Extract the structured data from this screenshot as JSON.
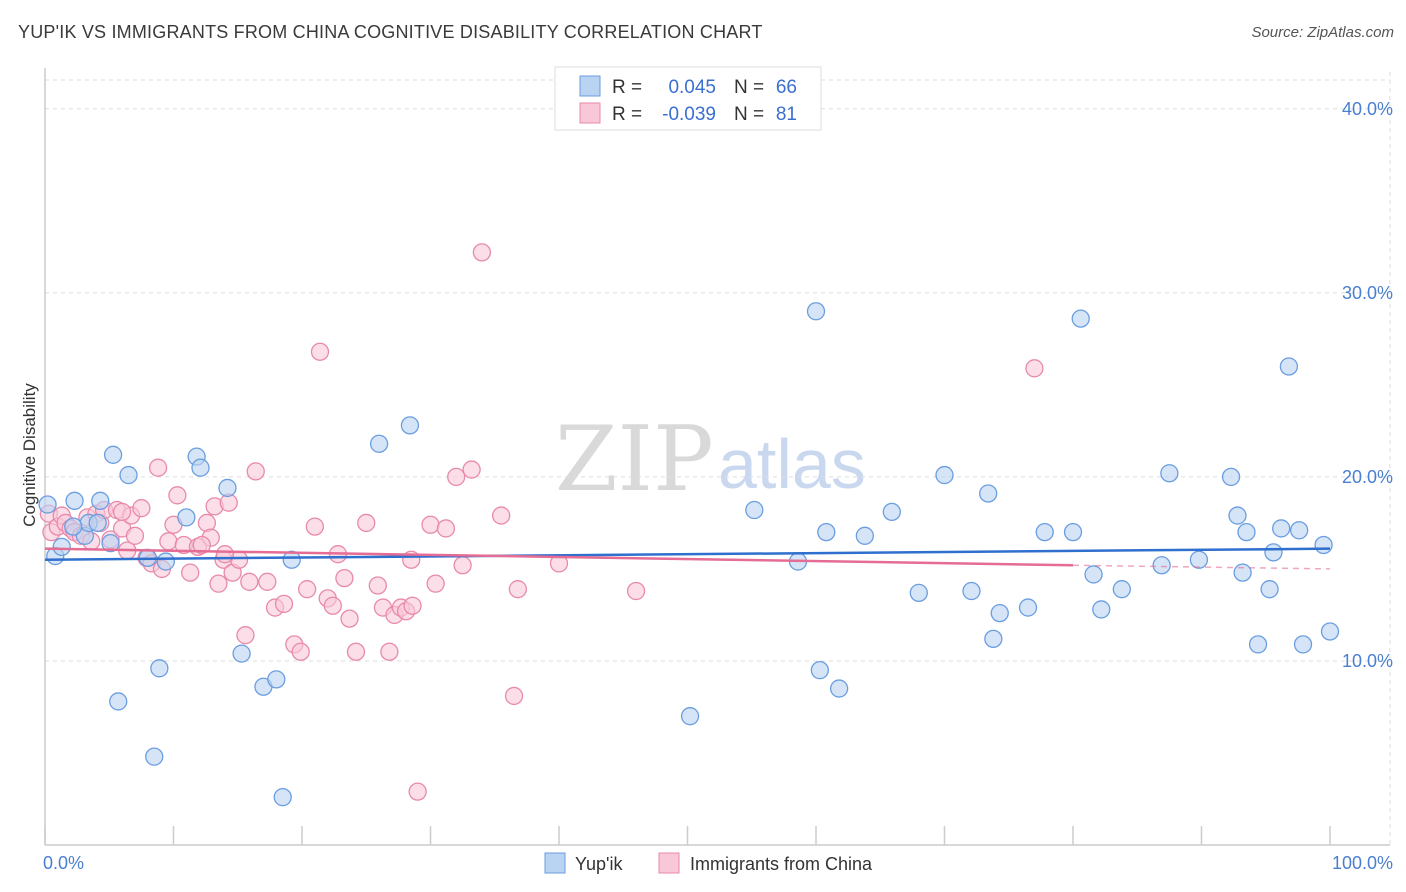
{
  "title": "YUP'IK VS IMMIGRANTS FROM CHINA COGNITIVE DISABILITY CORRELATION CHART",
  "source": "Source: ZipAtlas.com",
  "watermark": {
    "zip": "ZIP",
    "atlas": "atlas"
  },
  "legend": {
    "r_label": "R =",
    "n_label": "N =",
    "rows": [
      {
        "r": "0.045",
        "n": "66"
      },
      {
        "r": "-0.039",
        "n": "81"
      }
    ]
  },
  "colors": {
    "blue_fill": "#b9d3f2",
    "blue_stroke": "#6b9ee0",
    "blue_line": "#2f6fce",
    "pink_fill": "#f8c8d8",
    "pink_stroke": "#e88aab",
    "pink_line": "#e46c95"
  },
  "chart_data": {
    "type": "scatter",
    "title": "YUP'IK VS IMMIGRANTS FROM CHINA COGNITIVE DISABILITY CORRELATION CHART",
    "xlabel": "",
    "ylabel": "Cognitive Disability",
    "xlim": [
      0,
      100
    ],
    "ylim": [
      0,
      42
    ],
    "x_tick_labels": [
      "0.0%",
      "100.0%"
    ],
    "y_ticks": [
      10,
      20,
      30,
      40
    ],
    "y_tick_labels": [
      "10.0%",
      "20.0%",
      "30.0%",
      "40.0%"
    ],
    "grid": true,
    "legend_position": "bottom",
    "series": [
      {
        "name": "Yup'ik",
        "r": 0.045,
        "n": 66,
        "trend": {
          "x": [
            0,
            100
          ],
          "y": [
            15.5,
            16.1
          ]
        },
        "points": [
          [
            0.2,
            18.5
          ],
          [
            0.8,
            15.7
          ],
          [
            1.3,
            16.2
          ],
          [
            2.3,
            18.7
          ],
          [
            3.1,
            16.8
          ],
          [
            3.4,
            17.5
          ],
          [
            4.1,
            17.5
          ],
          [
            4.3,
            18.7
          ],
          [
            5.1,
            16.4
          ],
          [
            5.3,
            21.2
          ],
          [
            5.7,
            7.8
          ],
          [
            6.5,
            20.1
          ],
          [
            8.0,
            15.6
          ],
          [
            8.5,
            4.8
          ],
          [
            8.9,
            9.6
          ],
          [
            9.4,
            15.4
          ],
          [
            11.0,
            17.8
          ],
          [
            11.8,
            21.1
          ],
          [
            12.1,
            20.5
          ],
          [
            14.2,
            19.4
          ],
          [
            15.3,
            10.4
          ],
          [
            17.0,
            8.6
          ],
          [
            18.0,
            9.0
          ],
          [
            18.5,
            2.6
          ],
          [
            19.2,
            15.5
          ],
          [
            26.0,
            21.8
          ],
          [
            28.4,
            22.8
          ],
          [
            50.2,
            7.0
          ],
          [
            55.2,
            18.2
          ],
          [
            58.6,
            15.4
          ],
          [
            60.0,
            29.0
          ],
          [
            60.3,
            9.5
          ],
          [
            60.8,
            17.0
          ],
          [
            61.8,
            8.5
          ],
          [
            63.8,
            16.8
          ],
          [
            65.9,
            18.1
          ],
          [
            68.0,
            13.7
          ],
          [
            70.0,
            20.1
          ],
          [
            72.1,
            13.8
          ],
          [
            73.4,
            19.1
          ],
          [
            73.8,
            11.2
          ],
          [
            74.3,
            12.6
          ],
          [
            76.5,
            12.9
          ],
          [
            77.8,
            17.0
          ],
          [
            80.0,
            17.0
          ],
          [
            80.6,
            28.6
          ],
          [
            81.6,
            14.7
          ],
          [
            82.2,
            12.8
          ],
          [
            83.8,
            13.9
          ],
          [
            86.9,
            15.2
          ],
          [
            87.5,
            20.2
          ],
          [
            89.8,
            15.5
          ],
          [
            92.3,
            20.0
          ],
          [
            92.8,
            17.9
          ],
          [
            93.2,
            14.8
          ],
          [
            93.5,
            17.0
          ],
          [
            94.4,
            10.9
          ],
          [
            95.3,
            13.9
          ],
          [
            95.6,
            15.9
          ],
          [
            96.2,
            17.2
          ],
          [
            96.8,
            26.0
          ],
          [
            97.6,
            17.1
          ],
          [
            97.9,
            10.9
          ],
          [
            99.5,
            16.3
          ],
          [
            100.0,
            11.6
          ],
          [
            2.2,
            17.3
          ]
        ]
      },
      {
        "name": "Immigrants from China",
        "r": -0.039,
        "n": 81,
        "trend": {
          "x": [
            0,
            80
          ],
          "y": [
            16.1,
            15.2
          ]
        },
        "trend_dashed": {
          "x": [
            80,
            100
          ],
          "y": [
            15.2,
            15.0
          ]
        },
        "points": [
          [
            0.3,
            18.0
          ],
          [
            0.5,
            17.0
          ],
          [
            1.0,
            17.3
          ],
          [
            1.3,
            17.9
          ],
          [
            1.6,
            17.5
          ],
          [
            2.0,
            17.2
          ],
          [
            2.3,
            17.0
          ],
          [
            2.8,
            16.8
          ],
          [
            3.3,
            17.8
          ],
          [
            3.6,
            16.5
          ],
          [
            4.0,
            18.0
          ],
          [
            4.3,
            17.5
          ],
          [
            4.6,
            18.2
          ],
          [
            5.1,
            16.6
          ],
          [
            5.6,
            18.2
          ],
          [
            6.0,
            17.2
          ],
          [
            6.4,
            16.0
          ],
          [
            6.7,
            17.9
          ],
          [
            7.0,
            16.8
          ],
          [
            7.5,
            18.3
          ],
          [
            7.9,
            15.6
          ],
          [
            8.3,
            15.3
          ],
          [
            8.8,
            20.5
          ],
          [
            9.1,
            15.0
          ],
          [
            9.6,
            16.5
          ],
          [
            10.0,
            17.4
          ],
          [
            10.3,
            19.0
          ],
          [
            10.8,
            16.3
          ],
          [
            11.3,
            14.8
          ],
          [
            11.9,
            16.2
          ],
          [
            12.6,
            17.5
          ],
          [
            12.9,
            16.7
          ],
          [
            13.2,
            18.4
          ],
          [
            13.5,
            14.2
          ],
          [
            13.9,
            15.5
          ],
          [
            14.3,
            18.6
          ],
          [
            14.6,
            14.8
          ],
          [
            15.1,
            15.5
          ],
          [
            15.6,
            11.4
          ],
          [
            15.9,
            14.3
          ],
          [
            16.4,
            20.3
          ],
          [
            17.3,
            14.3
          ],
          [
            17.9,
            12.9
          ],
          [
            18.6,
            13.1
          ],
          [
            19.4,
            10.9
          ],
          [
            19.9,
            10.5
          ],
          [
            20.4,
            13.9
          ],
          [
            21.0,
            17.3
          ],
          [
            21.4,
            26.8
          ],
          [
            22.0,
            13.4
          ],
          [
            22.4,
            13.0
          ],
          [
            22.8,
            15.8
          ],
          [
            23.3,
            14.5
          ],
          [
            23.7,
            12.3
          ],
          [
            24.2,
            10.5
          ],
          [
            25.0,
            17.5
          ],
          [
            25.9,
            14.1
          ],
          [
            26.3,
            12.9
          ],
          [
            26.8,
            10.5
          ],
          [
            27.2,
            12.5
          ],
          [
            27.7,
            12.9
          ],
          [
            28.1,
            12.7
          ],
          [
            28.6,
            13.0
          ],
          [
            29.0,
            2.9
          ],
          [
            30.0,
            17.4
          ],
          [
            30.4,
            14.2
          ],
          [
            31.2,
            17.2
          ],
          [
            32.0,
            20.0
          ],
          [
            32.5,
            15.2
          ],
          [
            33.2,
            20.4
          ],
          [
            34.0,
            32.2
          ],
          [
            35.5,
            17.9
          ],
          [
            36.5,
            8.1
          ],
          [
            36.8,
            13.9
          ],
          [
            40.0,
            15.3
          ],
          [
            46.0,
            13.8
          ],
          [
            77.0,
            25.9
          ],
          [
            28.5,
            15.5
          ],
          [
            14.0,
            15.8
          ],
          [
            12.2,
            16.3
          ],
          [
            6.0,
            18.1
          ]
        ]
      }
    ]
  },
  "bottom_legend": [
    {
      "label": "Yup'ik"
    },
    {
      "label": "Immigrants from China"
    }
  ]
}
